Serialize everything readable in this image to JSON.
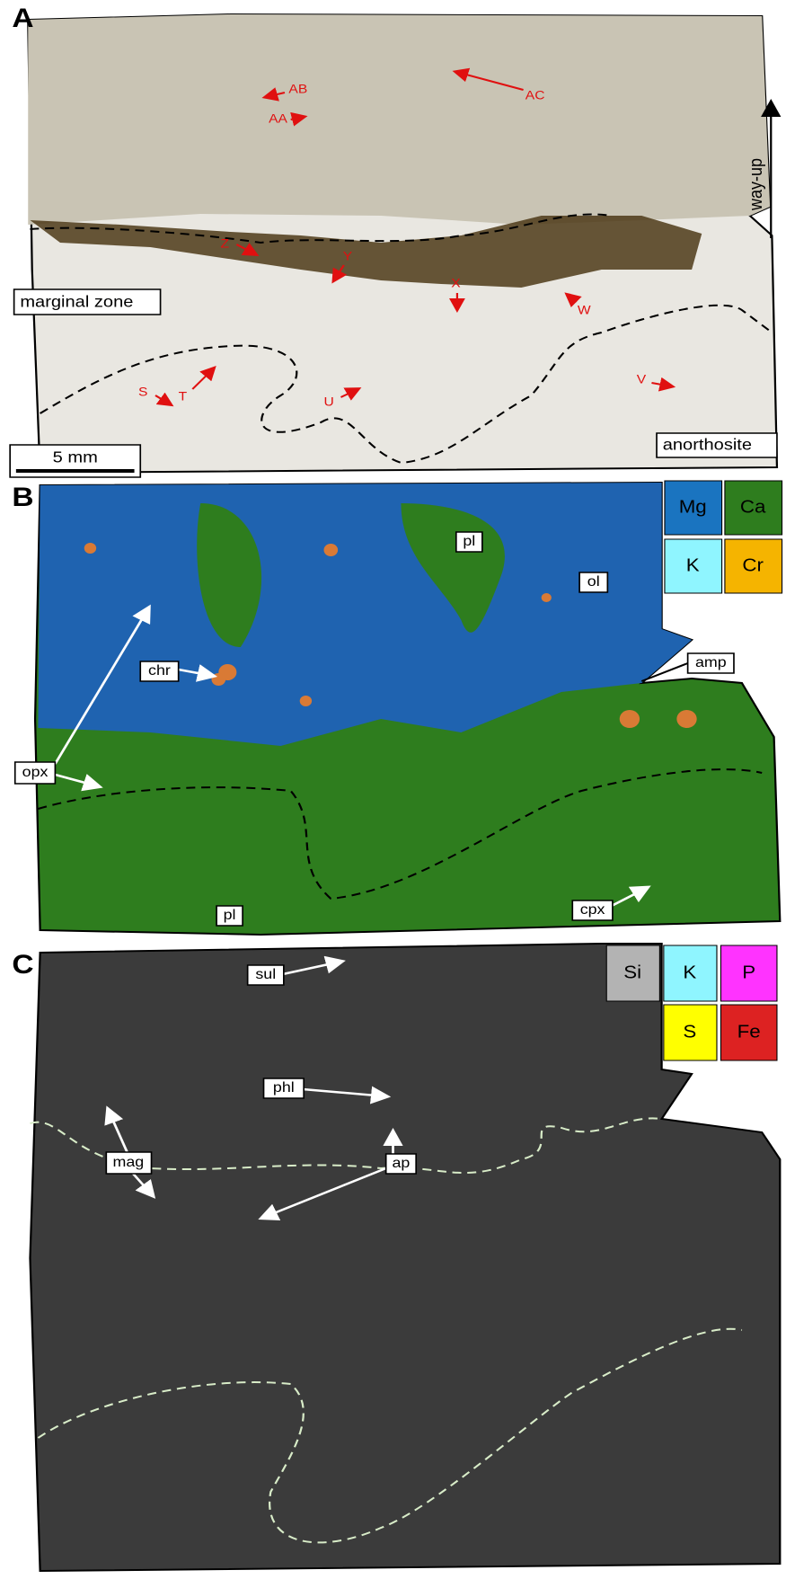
{
  "panels": [
    {
      "label": "A",
      "annotations": [
        "AB",
        "AA",
        "AC",
        "Z",
        "Y",
        "X",
        "W",
        "V",
        "S",
        "T",
        "U"
      ],
      "zones": [
        "marginal zone",
        "anorthosite"
      ],
      "direction": "way-up",
      "scale_bar": "5 mm"
    },
    {
      "label": "B",
      "legend": [
        {
          "text": "Mg",
          "color": "#1a74c0"
        },
        {
          "text": "Ca",
          "color": "#2e7d1e"
        },
        {
          "text": "K",
          "color": "#8ff5ff"
        },
        {
          "text": "Cr",
          "color": "#f5b400"
        }
      ],
      "annotations": [
        "pl",
        "ol",
        "amp",
        "chr",
        "opx",
        "pl",
        "cpx"
      ]
    },
    {
      "label": "C",
      "legend": [
        {
          "text": "Si",
          "color": "#b3b3b3"
        },
        {
          "text": "K",
          "color": "#8ff5ff"
        },
        {
          "text": "P",
          "color": "#ff33ff"
        },
        {
          "text": "S",
          "color": "#ffff00"
        },
        {
          "text": "Fe",
          "color": "#dd2222"
        }
      ],
      "annotations": [
        "sul",
        "phl",
        "mag",
        "ap"
      ]
    }
  ]
}
